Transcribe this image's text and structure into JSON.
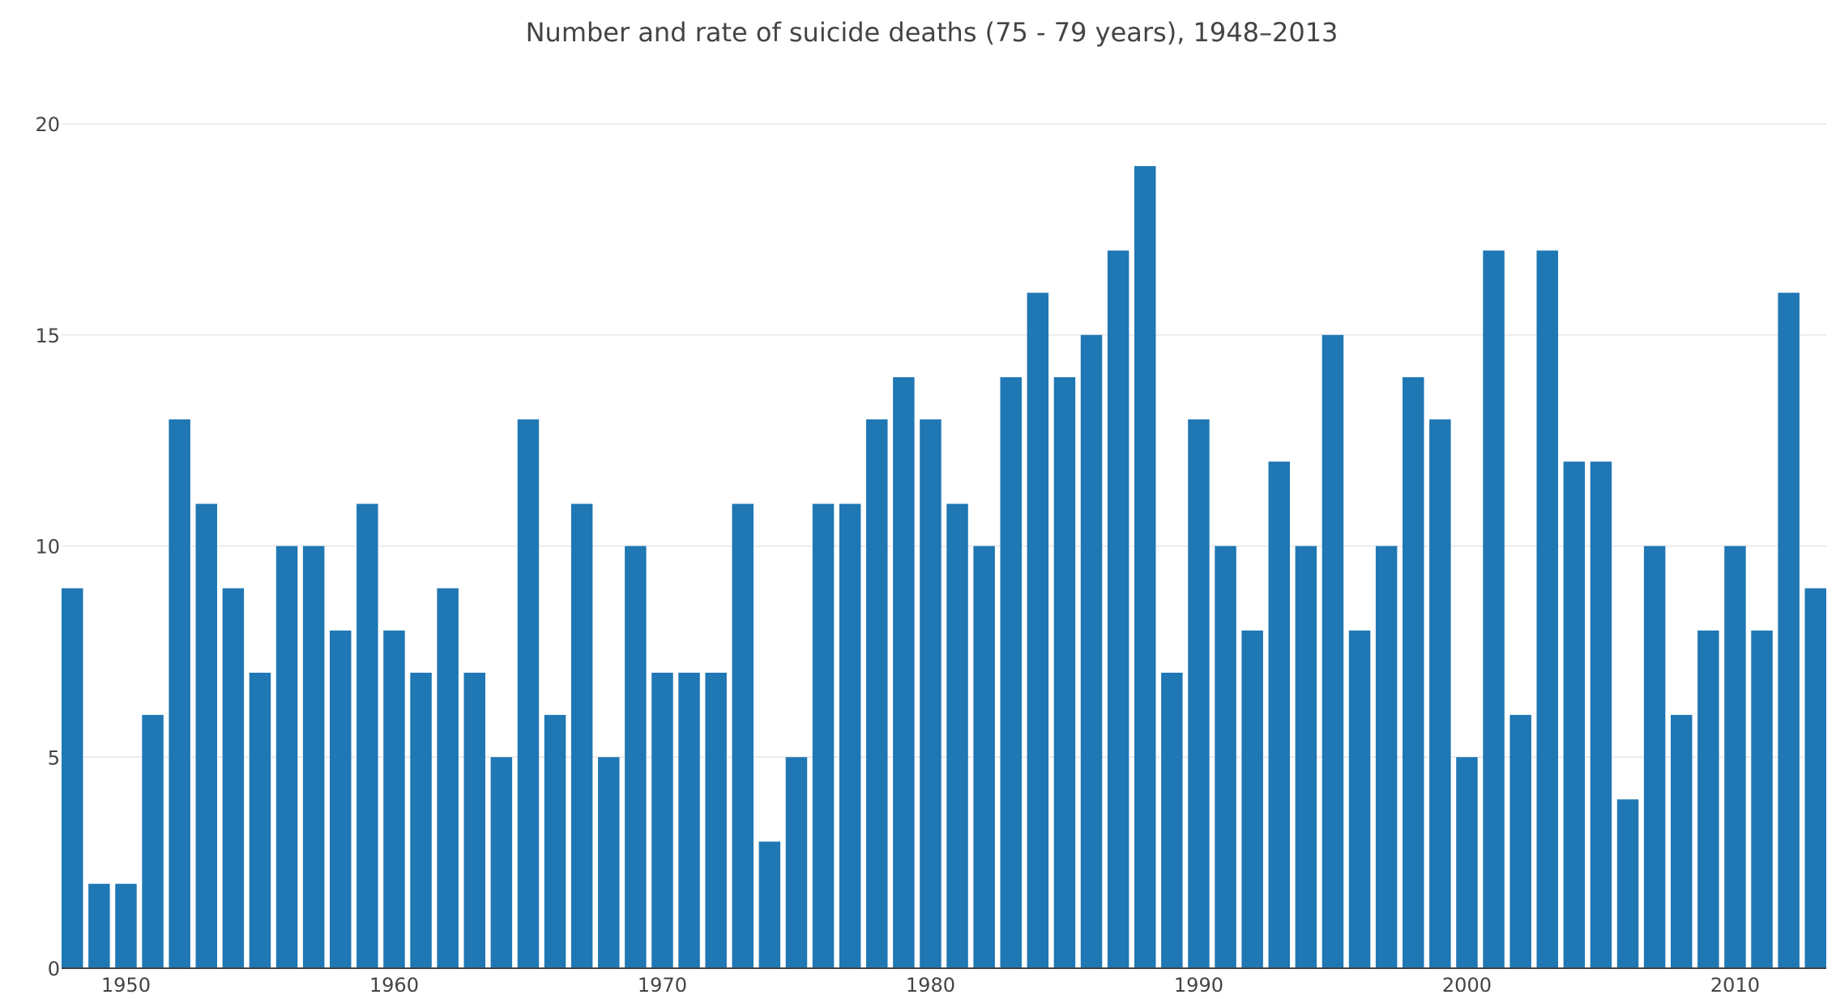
{
  "chart_data": {
    "type": "bar",
    "title": "Number and rate of suicide deaths (75 - 79 years), 1948–2013",
    "xlabel": "",
    "ylabel": "",
    "x": [
      1948,
      1949,
      1950,
      1951,
      1952,
      1953,
      1954,
      1955,
      1956,
      1957,
      1958,
      1959,
      1960,
      1961,
      1962,
      1963,
      1964,
      1965,
      1966,
      1967,
      1968,
      1969,
      1970,
      1971,
      1972,
      1973,
      1974,
      1975,
      1976,
      1977,
      1978,
      1979,
      1980,
      1981,
      1982,
      1983,
      1984,
      1985,
      1986,
      1987,
      1988,
      1989,
      1990,
      1991,
      1992,
      1993,
      1994,
      1995,
      1996,
      1997,
      1998,
      1999,
      2000,
      2001,
      2002,
      2003,
      2004,
      2005,
      2006,
      2007,
      2008,
      2009,
      2010,
      2011,
      2012,
      2013
    ],
    "values": [
      9,
      2,
      2,
      6,
      13,
      11,
      9,
      7,
      10,
      10,
      8,
      11,
      8,
      7,
      9,
      7,
      5,
      13,
      6,
      11,
      5,
      10,
      7,
      7,
      7,
      11,
      3,
      5,
      11,
      11,
      13,
      14,
      13,
      11,
      10,
      14,
      16,
      14,
      15,
      17,
      19,
      7,
      13,
      10,
      8,
      12,
      10,
      15,
      8,
      10,
      14,
      13,
      5,
      17,
      6,
      17,
      12,
      12,
      4,
      10,
      6,
      8,
      10,
      8,
      16,
      9
    ],
    "xlim": [
      1947.6,
      2013.4
    ],
    "ylim": [
      0,
      20
    ],
    "yticks": [
      0,
      5,
      10,
      15,
      20
    ],
    "xticks": [
      1950,
      1960,
      1970,
      1980,
      1990,
      2000,
      2010
    ],
    "grid": true,
    "legend": "none",
    "colors": {
      "bar": "#1f77b4",
      "grid": "#e6e6e6",
      "axis_line": "#444444",
      "text": "#444444"
    }
  }
}
